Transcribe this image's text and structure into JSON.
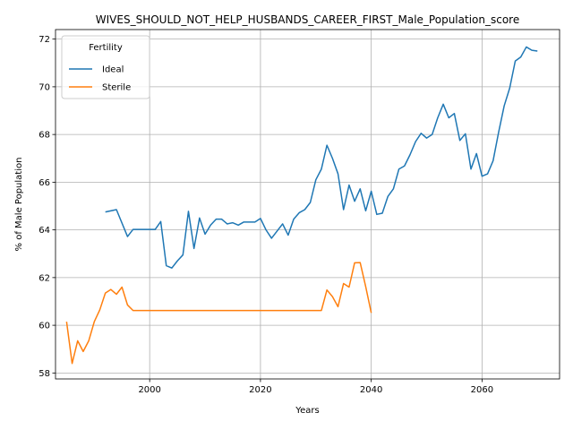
{
  "chart_data": {
    "type": "line",
    "title": "WIVES_SHOULD_NOT_HELP_HUSBANDS_CAREER_FIRST_Male_Population_score",
    "xlabel": "Years",
    "ylabel": "% of Male Population",
    "xlim": [
      1983,
      2074
    ],
    "ylim": [
      57.75,
      72.4
    ],
    "xticks": [
      2000,
      2020,
      2040,
      2060
    ],
    "yticks": [
      58,
      60,
      62,
      64,
      66,
      68,
      70,
      72
    ],
    "grid": true,
    "legend": {
      "title": "Fertility",
      "placement": "top-left"
    },
    "series": [
      {
        "name": "Ideal",
        "color": "#1f77b4",
        "points": [
          [
            1992,
            64.75
          ],
          [
            1994,
            64.85
          ],
          [
            1996,
            63.72
          ],
          [
            1997,
            64.02
          ],
          [
            1998,
            64.02
          ],
          [
            1999,
            64.02
          ],
          [
            2000,
            64.02
          ],
          [
            2001,
            64.02
          ],
          [
            2002,
            64.35
          ],
          [
            2003,
            62.5
          ],
          [
            2004,
            62.4
          ],
          [
            2005,
            62.7
          ],
          [
            2006,
            62.95
          ],
          [
            2007,
            64.78
          ],
          [
            2008,
            63.22
          ],
          [
            2009,
            64.5
          ],
          [
            2010,
            63.82
          ],
          [
            2011,
            64.2
          ],
          [
            2012,
            64.45
          ],
          [
            2013,
            64.45
          ],
          [
            2014,
            64.25
          ],
          [
            2015,
            64.3
          ],
          [
            2016,
            64.2
          ],
          [
            2017,
            64.33
          ],
          [
            2018,
            64.33
          ],
          [
            2019,
            64.33
          ],
          [
            2020,
            64.48
          ],
          [
            2021,
            64.0
          ],
          [
            2022,
            63.65
          ],
          [
            2023,
            63.95
          ],
          [
            2024,
            64.25
          ],
          [
            2025,
            63.78
          ],
          [
            2026,
            64.45
          ],
          [
            2027,
            64.72
          ],
          [
            2028,
            64.85
          ],
          [
            2029,
            65.15
          ],
          [
            2030,
            66.1
          ],
          [
            2031,
            66.55
          ],
          [
            2032,
            67.55
          ],
          [
            2033,
            67.0
          ],
          [
            2034,
            66.35
          ],
          [
            2035,
            64.85
          ],
          [
            2036,
            65.88
          ],
          [
            2037,
            65.2
          ],
          [
            2038,
            65.72
          ],
          [
            2039,
            64.8
          ],
          [
            2040,
            65.62
          ],
          [
            2041,
            64.65
          ],
          [
            2042,
            64.7
          ],
          [
            2043,
            65.4
          ],
          [
            2044,
            65.72
          ],
          [
            2045,
            66.55
          ],
          [
            2046,
            66.68
          ],
          [
            2047,
            67.15
          ],
          [
            2048,
            67.7
          ],
          [
            2049,
            68.05
          ],
          [
            2050,
            67.85
          ],
          [
            2051,
            68.0
          ],
          [
            2052,
            68.7
          ],
          [
            2053,
            69.27
          ],
          [
            2054,
            68.7
          ],
          [
            2055,
            68.88
          ],
          [
            2056,
            67.75
          ],
          [
            2057,
            68.03
          ],
          [
            2058,
            66.55
          ],
          [
            2059,
            67.2
          ],
          [
            2060,
            66.25
          ],
          [
            2061,
            66.35
          ],
          [
            2062,
            66.9
          ],
          [
            2063,
            68.1
          ],
          [
            2064,
            69.2
          ],
          [
            2065,
            69.95
          ],
          [
            2066,
            71.08
          ],
          [
            2067,
            71.25
          ],
          [
            2068,
            71.67
          ],
          [
            2069,
            71.53
          ],
          [
            2070,
            71.5
          ]
        ]
      },
      {
        "name": "Sterile",
        "color": "#ff7f0e",
        "points": [
          [
            1985,
            60.15
          ],
          [
            1986,
            58.4
          ],
          [
            1987,
            59.35
          ],
          [
            1988,
            58.9
          ],
          [
            1989,
            59.35
          ],
          [
            1990,
            60.15
          ],
          [
            1991,
            60.65
          ],
          [
            1992,
            61.35
          ],
          [
            1993,
            61.5
          ],
          [
            1994,
            61.3
          ],
          [
            1995,
            61.6
          ],
          [
            1996,
            60.85
          ],
          [
            1997,
            60.62
          ],
          [
            2000,
            60.62
          ],
          [
            2010,
            60.62
          ],
          [
            2020,
            60.62
          ],
          [
            2030,
            60.62
          ],
          [
            2031,
            60.62
          ],
          [
            2032,
            61.48
          ],
          [
            2033,
            61.2
          ],
          [
            2034,
            60.78
          ],
          [
            2035,
            61.75
          ],
          [
            2036,
            61.6
          ],
          [
            2037,
            62.62
          ],
          [
            2038,
            62.63
          ],
          [
            2039,
            61.62
          ],
          [
            2040,
            60.52
          ]
        ]
      }
    ]
  }
}
